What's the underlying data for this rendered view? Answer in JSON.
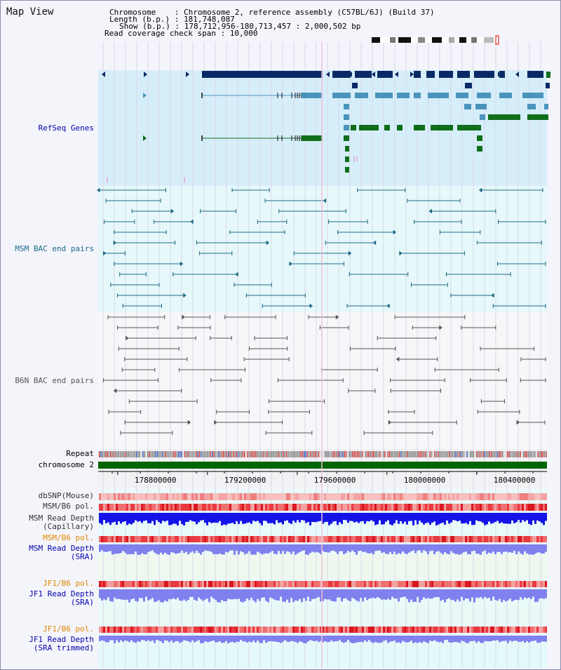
{
  "page": {
    "title": "Map View"
  },
  "header": {
    "chromosome": "Chromosome    : Chromosome 2, reference assembly (C57BL/6J) (Build 37)",
    "length": "Length (b.p.) : 181,748,087",
    "show": "Show (b.p.) : 178,712,956-180,713,457 : 2,000,502 bp",
    "coverage": "Read coverage check span : 10,000"
  },
  "tracks": {
    "refseq": "RefSeq Genes",
    "msm_bac": "MSM BAC end pairs",
    "b6n_bac": "B6N BAC end pairs",
    "repeat": "Repeat",
    "chromosome": "chromosome 2",
    "dbsnp": "dbSNP(Mouse)",
    "msm_b6_pol": "MSM/B6 pol.",
    "msm_depth_cap_1": "MSM Read Depth",
    "msm_depth_cap_2": "(Capillary)",
    "msm_b6_pol_sra": "MSM/B6 pol.",
    "msm_depth_sra_1": "MSM Read Depth",
    "msm_depth_sra_2": "(SRA)",
    "jf1_b6_pol_1": "JF1/B6 pol.",
    "jf1_depth_sra_1": "JF1 Read Depth",
    "jf1_depth_sra_2": "(SRA)",
    "jf1_b6_pol_2": "JF1/B6 pol.",
    "jf1_depth_trim_1": "JF1 Read Depth",
    "jf1_depth_trim_2": "(SRA trimmed)"
  },
  "axis": {
    "ticks": [
      {
        "label": "178800000",
        "value": 178800000
      },
      {
        "label": "179200000",
        "value": 179200000
      },
      {
        "label": "179600000",
        "value": 179600000
      },
      {
        "label": "180000000",
        "value": 180000000
      },
      {
        "label": "180400000",
        "value": 180400000
      }
    ]
  },
  "colors": {
    "refseq_dark": "#0a2a66",
    "refseq_mid": "#4a94bc",
    "refseq_green": "#0f6e1a",
    "refseq_bg": "#d6eefa",
    "msm_bac": "#1e6a86",
    "msm_bg": "#e6f8fa",
    "b6n_bac": "#555555",
    "chromosome": "#006400",
    "pol_red": "#e8202a",
    "depth_blue": "#1010e0",
    "depth_light": "#8080ee",
    "label_blue": "#0000aa",
    "label_teal": "#1a6a8a",
    "label_orange": "#e08800"
  }
}
